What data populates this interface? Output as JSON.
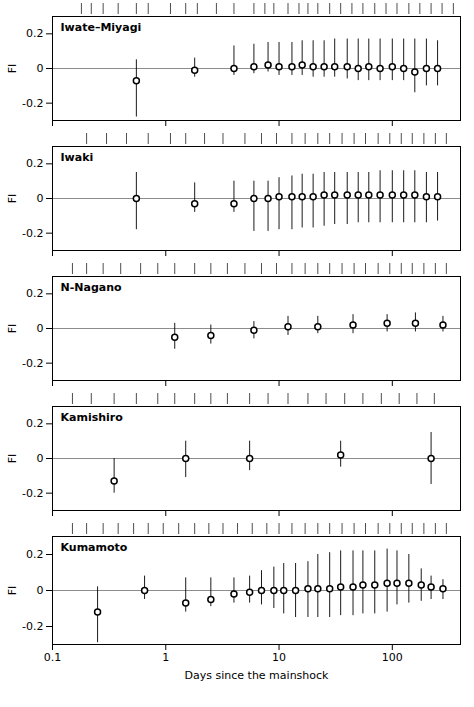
{
  "chart_data": [
    {
      "type": "scatter",
      "title": "Iwate–Miyagi",
      "log": "x",
      "tick_labels": "y",
      "x": [
        0.55,
        1.8,
        4.0,
        6.0,
        8.0,
        10.0,
        13.0,
        16.0,
        20.0,
        25.0,
        31.0,
        40.0,
        50.0,
        62.0,
        78.0,
        100.0,
        126.0,
        158.0,
        200.0,
        251.0
      ],
      "values": [
        -0.07,
        -0.01,
        0.0,
        0.01,
        0.02,
        0.01,
        0.01,
        0.02,
        0.01,
        0.01,
        0.01,
        0.01,
        0.0,
        0.01,
        0.0,
        0.01,
        0.0,
        -0.02,
        0.0,
        0.0
      ],
      "lo": [
        -0.28,
        -0.05,
        -0.04,
        -0.03,
        -0.02,
        -0.04,
        -0.04,
        -0.04,
        -0.05,
        -0.05,
        -0.05,
        -0.06,
        -0.07,
        -0.07,
        -0.07,
        -0.07,
        -0.07,
        -0.14,
        -0.1,
        -0.1
      ],
      "hi": [
        0.05,
        0.06,
        0.13,
        0.14,
        0.15,
        0.15,
        0.15,
        0.16,
        0.16,
        0.16,
        0.17,
        0.17,
        0.17,
        0.17,
        0.17,
        0.17,
        0.17,
        0.17,
        0.17,
        0.16
      ],
      "rug": [
        0.18,
        0.22,
        0.28,
        0.38,
        0.55,
        0.7,
        1.1,
        1.5,
        1.9,
        2.8,
        4.0,
        6.0,
        7.5,
        9.0,
        12.0,
        15.0,
        18.0,
        22.0,
        28.0,
        35.0,
        44.0,
        55.0,
        70.0,
        88.0,
        110.0,
        140.0,
        175.0,
        220.0,
        275.0,
        346.0
      ],
      "hline": 0,
      "xlim": [
        0.1,
        400
      ],
      "xticks": [
        0.1,
        1,
        10,
        100
      ],
      "ylim": [
        -0.3,
        0.3
      ],
      "yticks": [
        -0.2,
        0.0,
        0.2
      ],
      "ylabel": "FI"
    },
    {
      "type": "scatter",
      "title": "Iwaki",
      "log": "x",
      "tick_labels": "y",
      "x": [
        0.55,
        1.8,
        4.0,
        6.0,
        8.0,
        10.0,
        13.0,
        16.0,
        20.0,
        25.0,
        31.0,
        40.0,
        50.0,
        62.0,
        78.0,
        100.0,
        126.0,
        158.0,
        200.0,
        251.0
      ],
      "values": [
        0.0,
        -0.03,
        -0.03,
        0.0,
        0.0,
        0.01,
        0.01,
        0.01,
        0.01,
        0.02,
        0.02,
        0.02,
        0.02,
        0.02,
        0.02,
        0.02,
        0.02,
        0.02,
        0.01,
        0.01
      ],
      "lo": [
        -0.18,
        -0.08,
        -0.08,
        -0.19,
        -0.19,
        -0.18,
        -0.18,
        -0.17,
        -0.17,
        -0.16,
        -0.15,
        -0.15,
        -0.14,
        -0.14,
        -0.14,
        -0.14,
        -0.14,
        -0.14,
        -0.14,
        -0.13
      ],
      "hi": [
        0.15,
        0.09,
        0.1,
        0.1,
        0.1,
        0.12,
        0.13,
        0.14,
        0.14,
        0.15,
        0.15,
        0.15,
        0.15,
        0.15,
        0.16,
        0.16,
        0.16,
        0.16,
        0.15,
        0.15
      ],
      "rug": [
        0.2,
        0.3,
        0.45,
        0.7,
        1.1,
        1.5,
        2.2,
        3.2,
        5.0,
        7.0,
        9.5,
        13.0,
        17.0,
        22.0,
        28.0,
        36.0,
        46.0,
        58.0,
        75.0,
        95.0,
        120.0,
        150.0,
        190.0,
        240.0,
        300.0
      ],
      "hline": 0,
      "xlim": [
        0.1,
        400
      ],
      "xticks": [
        0.1,
        1,
        10,
        100
      ],
      "ylim": [
        -0.3,
        0.3
      ],
      "yticks": [
        -0.2,
        0.0,
        0.2
      ],
      "ylabel": "FI"
    },
    {
      "type": "scatter",
      "title": "N-Nagano",
      "log": "x",
      "tick_labels": "y",
      "x": [
        1.2,
        2.5,
        6.0,
        12.0,
        22.0,
        45.0,
        90.0,
        160.0,
        280.0
      ],
      "values": [
        -0.05,
        -0.04,
        -0.01,
        0.01,
        0.01,
        0.02,
        0.03,
        0.03,
        0.02
      ],
      "lo": [
        -0.12,
        -0.09,
        -0.06,
        -0.04,
        -0.03,
        -0.03,
        -0.02,
        -0.02,
        -0.02
      ],
      "hi": [
        0.03,
        0.02,
        0.04,
        0.07,
        0.07,
        0.08,
        0.08,
        0.09,
        0.07
      ],
      "rug": [
        0.15,
        0.2,
        0.28,
        0.4,
        0.6,
        0.85,
        1.2,
        1.8,
        2.5,
        3.5,
        5.0,
        7.0,
        9.5,
        13.0,
        17.0,
        22.0,
        28.0,
        36.0,
        46.0,
        58.0,
        75.0,
        95.0,
        120.0,
        150.0,
        190.0,
        240.0,
        300.0
      ],
      "hline": 0,
      "xlim": [
        0.1,
        400
      ],
      "xticks": [
        0.1,
        1,
        10,
        100
      ],
      "ylim": [
        -0.3,
        0.3
      ],
      "yticks": [
        -0.2,
        0.0,
        0.2
      ],
      "ylabel": "FI"
    },
    {
      "type": "scatter",
      "title": "Kamishiro",
      "log": "x",
      "tick_labels": "y",
      "x": [
        0.35,
        1.5,
        5.5,
        35.0,
        220.0
      ],
      "values": [
        -0.13,
        0.0,
        0.0,
        0.02,
        0.0
      ],
      "lo": [
        -0.2,
        -0.11,
        -0.07,
        -0.05,
        -0.15
      ],
      "hi": [
        0.0,
        0.1,
        0.1,
        0.1,
        0.15
      ],
      "rug": [
        0.15,
        0.22,
        0.35,
        0.55,
        0.85,
        1.2,
        1.8,
        2.5,
        3.5,
        5.5,
        8.0,
        12.0,
        18.0,
        26.0,
        38.0,
        55.0,
        80.0,
        115.0,
        165.0,
        235.0
      ],
      "hline": 0,
      "xlim": [
        0.1,
        400
      ],
      "xticks": [
        0.1,
        1,
        10,
        100
      ],
      "ylim": [
        -0.3,
        0.3
      ],
      "yticks": [
        -0.2,
        0.0,
        0.2
      ],
      "ylabel": "FI"
    },
    {
      "type": "scatter",
      "title": "Kumamoto",
      "log": "x",
      "x": [
        0.25,
        0.65,
        1.5,
        2.5,
        4.0,
        5.5,
        7.0,
        9.0,
        11.0,
        14.0,
        18.0,
        22.0,
        28.0,
        35.0,
        45.0,
        55.0,
        70.0,
        90.0,
        110.0,
        140.0,
        180.0,
        220.0,
        280.0
      ],
      "values": [
        -0.12,
        0.0,
        -0.07,
        -0.05,
        -0.02,
        -0.01,
        0.0,
        0.0,
        0.0,
        0.0,
        0.01,
        0.01,
        0.01,
        0.02,
        0.02,
        0.03,
        0.03,
        0.04,
        0.04,
        0.04,
        0.03,
        0.02,
        0.01
      ],
      "lo": [
        -0.29,
        -0.05,
        -0.12,
        -0.09,
        -0.07,
        -0.07,
        -0.08,
        -0.1,
        -0.13,
        -0.15,
        -0.15,
        -0.15,
        -0.15,
        -0.14,
        -0.14,
        -0.13,
        -0.13,
        -0.12,
        -0.08,
        -0.07,
        -0.06,
        -0.05,
        -0.05
      ],
      "hi": [
        0.02,
        0.08,
        0.07,
        0.07,
        0.07,
        0.08,
        0.11,
        0.13,
        0.15,
        0.15,
        0.16,
        0.2,
        0.21,
        0.22,
        0.22,
        0.22,
        0.22,
        0.23,
        0.22,
        0.2,
        0.12,
        0.08,
        0.06
      ],
      "rug": [
        0.15,
        0.2,
        0.28,
        0.38,
        0.52,
        0.7,
        0.95,
        1.3,
        1.8,
        2.4,
        3.2,
        4.3,
        5.8,
        7.8,
        10.0,
        13.0,
        17.0,
        22.0,
        28.0,
        36.0,
        46.0,
        58.0,
        75.0,
        95.0,
        120.0,
        150.0,
        190.0,
        240.0,
        300.0
      ],
      "hline": 0,
      "xlim": [
        0.1,
        400
      ],
      "xticks": [
        0.1,
        1,
        10,
        100
      ],
      "ylim": [
        -0.3,
        0.3
      ],
      "yticks": [
        -0.2,
        0.0,
        0.2
      ],
      "ylabel": "FI",
      "xlabel": "Days since the mainshock"
    }
  ]
}
